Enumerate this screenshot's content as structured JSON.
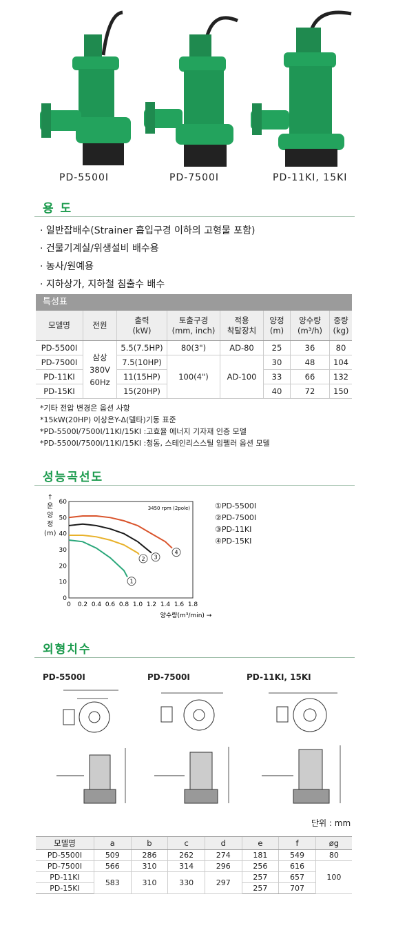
{
  "products": [
    "PD-5500I",
    "PD-7500I",
    "PD-11KI, 15KI"
  ],
  "usage": {
    "title": "용 도",
    "items": [
      "일반잡배수(Strainer 흡입구경 이하의 고형물 포함)",
      "건물기계실/위생설비 배수용",
      "농사/원예용",
      "지하상가, 지하철 침출수 배수"
    ]
  },
  "spec": {
    "title": "특성표",
    "headers": [
      "모델명",
      "전원",
      "출력\n(kW)",
      "토출구경\n(mm, inch)",
      "적용\n착탈장치",
      "양정\n(m)",
      "양수량\n(m³/h)",
      "중량\n(kg)"
    ],
    "power": [
      "삼상",
      "380V",
      "60Hz"
    ],
    "rows": [
      {
        "model": "PD-5500I",
        "output": "5.5(7.5HP)",
        "outlet": "80(3\")",
        "device": "AD-80",
        "head": "25",
        "flow": "36",
        "weight": "80"
      },
      {
        "model": "PD-7500I",
        "output": "7.5(10HP)",
        "head": "30",
        "flow": "48",
        "weight": "104"
      },
      {
        "model": "PD-11KI",
        "output": "11(15HP)",
        "head": "33",
        "flow": "66",
        "weight": "132"
      },
      {
        "model": "PD-15KI",
        "output": "15(20HP)",
        "head": "40",
        "flow": "72",
        "weight": "150"
      }
    ],
    "outlet_shared": "100(4\")",
    "device_shared": "AD-100",
    "notes": [
      "*기타 전압 변경은 옵션 사항",
      "*15kW(20HP) 이상은Y-Δ(델타)기동 표준",
      "*PD-5500I/7500I/11KI/15KI :고효율 에너지 기자재 인증 모델",
      "*PD-5500I/7500I/11KI/15KI :청동, 스테인리스스틸 임펠러 옵션 모델"
    ]
  },
  "curve": {
    "title": "성능곡선도",
    "rpm_note": "3450 rpm (2pole)",
    "ylabel": "↑\n운\n양\n정\n(m)",
    "xlabel": "양수량(m³/min) →",
    "legend": [
      "①PD-5500I",
      "②PD-7500I",
      "③PD-11KI",
      "④PD-15KI"
    ],
    "markers": [
      "1",
      "2",
      "3",
      "4"
    ],
    "colors": [
      "#2aa77a",
      "#e8b12a",
      "#1a1a1a",
      "#d9532b"
    ]
  },
  "chart_data": {
    "type": "line",
    "title": "",
    "xlabel": "양수량(m³/min) →",
    "ylabel": "양정(m)",
    "xlim": [
      0,
      1.8
    ],
    "ylim": [
      0,
      60
    ],
    "x_ticks": [
      "0",
      "0.2",
      "0.4",
      "0.6",
      "0.8",
      "1.0",
      "1.2",
      "1.4",
      "1.6",
      "1.8"
    ],
    "y_ticks": [
      "0",
      "10",
      "20",
      "30",
      "40",
      "50",
      "60"
    ],
    "series": [
      {
        "name": "①PD-5500I",
        "x": [
          0,
          0.2,
          0.4,
          0.6,
          0.8,
          0.85
        ],
        "y": [
          36,
          35,
          31,
          25,
          17,
          13
        ]
      },
      {
        "name": "②PD-7500I",
        "x": [
          0,
          0.2,
          0.4,
          0.6,
          0.8,
          1.0,
          1.02
        ],
        "y": [
          39,
          39,
          38,
          36,
          33,
          28,
          27
        ]
      },
      {
        "name": "③PD-11KI",
        "x": [
          0,
          0.2,
          0.4,
          0.6,
          0.8,
          1.0,
          1.2
        ],
        "y": [
          45,
          46,
          45,
          43,
          40,
          35,
          28
        ]
      },
      {
        "name": "④PD-15KI",
        "x": [
          0,
          0.2,
          0.4,
          0.6,
          0.8,
          1.0,
          1.2,
          1.4,
          1.5
        ],
        "y": [
          50,
          51,
          51,
          50,
          48,
          45,
          40,
          35,
          31
        ]
      }
    ],
    "grid": false
  },
  "dimensions": {
    "title": "외형치수",
    "drawings": [
      "PD-5500I",
      "PD-7500I",
      "PD-11KI, 15KI"
    ],
    "unit": "단위 : mm",
    "headers": [
      "모델명",
      "a",
      "b",
      "c",
      "d",
      "e",
      "f",
      "øg"
    ],
    "rows": [
      [
        "PD-5500I",
        "509",
        "286",
        "262",
        "274",
        "181",
        "549",
        "80"
      ],
      [
        "PD-7500I",
        "566",
        "310",
        "314",
        "296",
        "256",
        "616"
      ],
      [
        "PD-11KI",
        "583",
        "310",
        "330",
        "297",
        "257",
        "657",
        "100"
      ],
      [
        "PD-15KI",
        "257",
        "707"
      ]
    ]
  }
}
